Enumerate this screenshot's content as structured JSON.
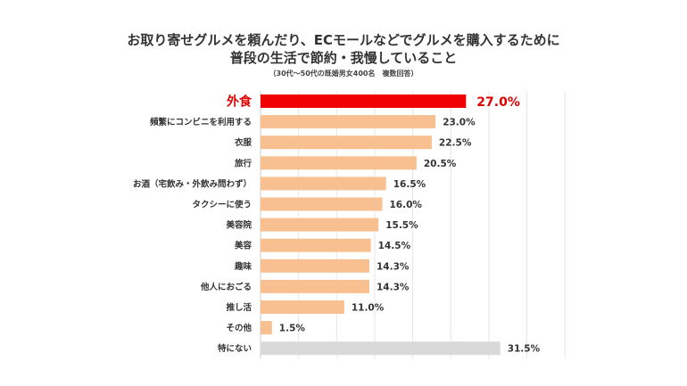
{
  "chart_data": {
    "type": "bar",
    "orientation": "horizontal",
    "title_line1": "お取り寄せグルメを頼んだり、ECモールなどでグルメを購入するために",
    "title_line2": "普段の生活で節約・我慢していること",
    "subtitle": "（30代〜50代の既婚男女400名　複数回答）",
    "categories": [
      "外食",
      "頻繁にコンビニを利用する",
      "衣服",
      "旅行",
      "お酒（宅飲み・外飲み問わず）",
      "タクシーに使う",
      "美容院",
      "美容",
      "趣味",
      "他人におごる",
      "推し活",
      "その他",
      "特にない"
    ],
    "values": [
      27.0,
      23.0,
      22.5,
      20.5,
      16.5,
      16.0,
      15.5,
      14.5,
      14.3,
      14.3,
      11.0,
      1.5,
      31.5
    ],
    "value_labels": [
      "27.0%",
      "23.0%",
      "22.5%",
      "20.5%",
      "16.5%",
      "16.0%",
      "15.5%",
      "14.5%",
      "14.3%",
      "14.3%",
      "11.0%",
      "1.5%",
      "31.5%"
    ],
    "highlight_index": 0,
    "muted_index": 12,
    "xlim": [
      0,
      40
    ],
    "grid": true,
    "colors": {
      "highlight": "#f00000",
      "default": "#f8c090",
      "muted": "#d9d9d9",
      "highlight_text": "#e00000",
      "text": "#333333",
      "grid": "#e6e6e6"
    }
  }
}
